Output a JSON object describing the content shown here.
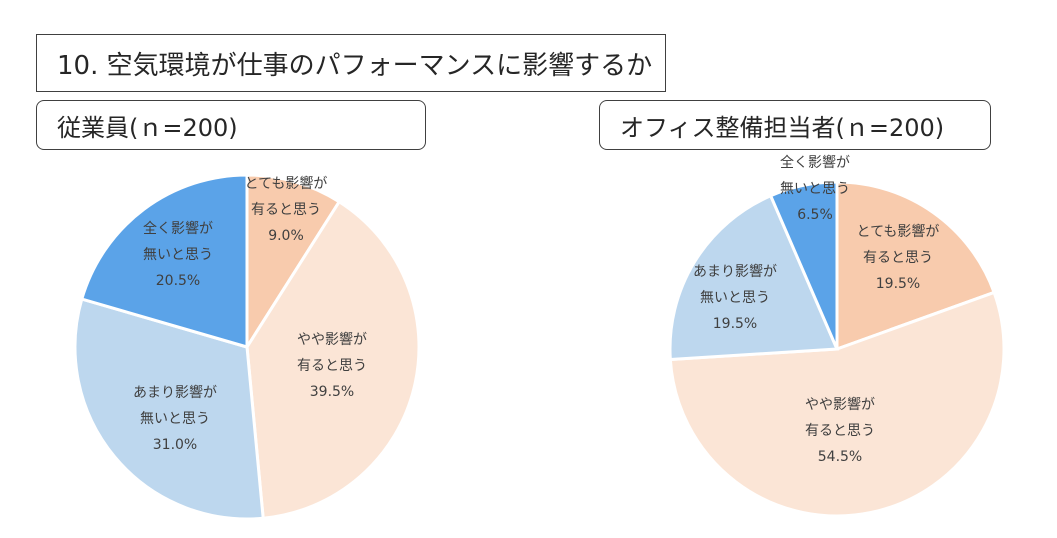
{
  "title": "10. 空気環境が仕事のパフォーマンスに影響するか",
  "chart_data": [
    {
      "type": "pie",
      "title": "従業員(ｎ=200)",
      "start_angle_deg": 0,
      "direction": "clockwise",
      "slices": [
        {
          "label": [
            "とても影響が",
            "有ると思う"
          ],
          "value": 9.0,
          "display": "9.0%",
          "color": "#F8CBAD"
        },
        {
          "label": [
            "やや影響が",
            "有ると思う"
          ],
          "value": 39.5,
          "display": "39.5%",
          "color": "#FBE5D6"
        },
        {
          "label": [
            "あまり影響が",
            "無いと思う"
          ],
          "value": 31.0,
          "display": "31.0%",
          "color": "#BDD7EE"
        },
        {
          "label": [
            "全く影響が",
            "無いと思う"
          ],
          "value": 20.5,
          "display": "20.5%",
          "color": "#5BA3E8"
        }
      ]
    },
    {
      "type": "pie",
      "title": "オフィス整備担当者(ｎ=200)",
      "start_angle_deg": 0,
      "direction": "clockwise",
      "slices": [
        {
          "label": [
            "とても影響が",
            "有ると思う"
          ],
          "value": 19.5,
          "display": "19.5%",
          "color": "#F8CBAD"
        },
        {
          "label": [
            "やや影響が",
            "有ると思う"
          ],
          "value": 54.5,
          "display": "54.5%",
          "color": "#FBE5D6"
        },
        {
          "label": [
            "あまり影響が",
            "無いと思う"
          ],
          "value": 19.5,
          "display": "19.5%",
          "color": "#BDD7EE"
        },
        {
          "label": [
            "全く影響が",
            "無いと思う"
          ],
          "value": 6.5,
          "display": "6.5%",
          "color": "#5BA3E8"
        }
      ]
    }
  ]
}
